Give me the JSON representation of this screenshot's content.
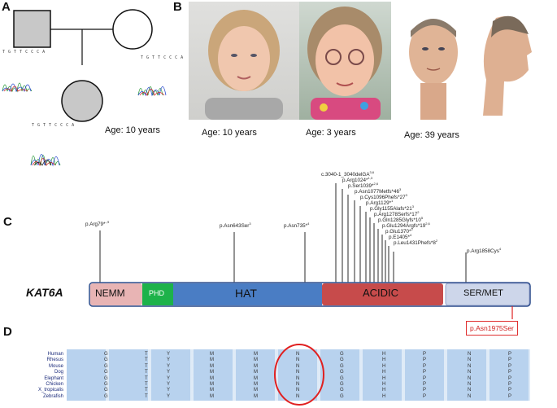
{
  "panels": {
    "a": "A",
    "b": "B",
    "c": "C",
    "d": "D"
  },
  "panel_a": {
    "seq_father": "T G T T C C C A",
    "seq_mother": "T G T T C C C A",
    "seq_child": "T G T T C C C A",
    "age": "Age: 10 years"
  },
  "panel_b": {
    "ages": [
      "Age: 10 years",
      "Age: 3 years",
      "Age: 39 years"
    ]
  },
  "panel_c": {
    "gene": "KAT6A",
    "domains": [
      "NEMM",
      "PHD",
      "HAT",
      "ACIDIC",
      "SER/MET"
    ],
    "variants_left": [
      {
        "text": "p.Arg79*",
        "sup": "-,9"
      },
      {
        "text": "p.Asn643Ser",
        "sup": "3"
      },
      {
        "text": "p.Asn735*",
        "sup": "4"
      }
    ],
    "variants_cluster": [
      {
        "text": "c.3040-1_3040delGA",
        "sup": "3,6"
      },
      {
        "text": "p.Arg1024*",
        "sup": "1,3"
      },
      {
        "text": "p.Ser1039*",
        "sup": "2,6"
      },
      {
        "text": "p.Asn1077Metfs*46",
        "sup": "3"
      },
      {
        "text": "p.Cys1096Phefs*27",
        "sup": "3"
      },
      {
        "text": "p.Arg1129*",
        "sup": "1"
      },
      {
        "text": "p.Gly1155Alafs*21",
        "sup": "3"
      },
      {
        "text": "p.Arg1278Serfs*17",
        "sup": "2"
      },
      {
        "text": "p.Gln1285Glyfs*10",
        "sup": "5"
      },
      {
        "text": "p.Glu1294Argfs*19",
        "sup": "2,6"
      },
      {
        "text": "p.Glu1370*",
        "sup": "2"
      },
      {
        "text": "p.E1405*",
        "sup": "4"
      },
      {
        "text": "p.Leu1431Phefs*8",
        "sup": "2"
      }
    ],
    "variant_right": {
      "text": "p.Arg1858Cys",
      "sup": "4"
    },
    "new_variant": "p.Asn1975Ser"
  },
  "panel_d": {
    "species": [
      "Human",
      "Rhesus",
      "Mouse",
      "Dog",
      "Elephant",
      "Chicken",
      "X_tropicalis",
      "Zebrafish"
    ],
    "residues": [
      "G",
      "T",
      "Y",
      "M",
      "M",
      "N",
      "G",
      "H",
      "P",
      "N",
      "P"
    ]
  },
  "colors": {
    "nemm": "#e8b4b4",
    "phd": "#1db24a",
    "hat": "#4a7dc4",
    "acidic": "#c74b4b",
    "sermet": "#cdd6ea",
    "highlight": "#e02020",
    "alignment_bg": "#b8d2ee"
  }
}
